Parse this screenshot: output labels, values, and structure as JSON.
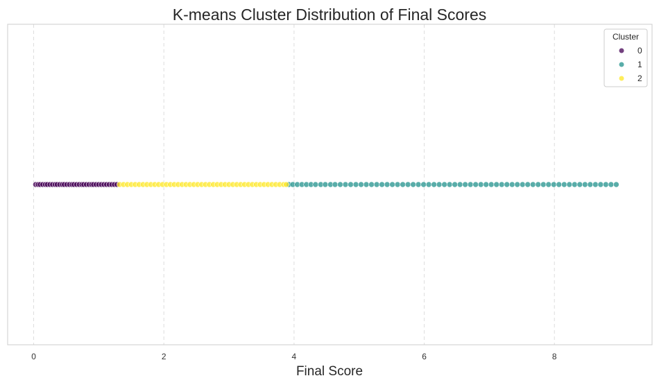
{
  "chart_data": {
    "type": "scatter",
    "title": "K-means Cluster Distribution of Final Scores",
    "xlabel": "Final Score",
    "ylabel": "",
    "xlim": [
      -0.4,
      9.5
    ],
    "xticks": [
      0,
      2,
      4,
      6,
      8
    ],
    "xtick_labels": [
      "0",
      "2",
      "4",
      "6",
      "8"
    ],
    "grid": "x-only, dashed",
    "legend": {
      "title": "Cluster",
      "placement": "top-right",
      "entries": [
        "0",
        "1",
        "2"
      ]
    },
    "y_value": 0,
    "series": [
      {
        "name": "0",
        "color": "#440154",
        "x": [
          0.03,
          0.07,
          0.1,
          0.14,
          0.18,
          0.21,
          0.25,
          0.29,
          0.33,
          0.36,
          0.4,
          0.44,
          0.47,
          0.51,
          0.55,
          0.59,
          0.62,
          0.66,
          0.7,
          0.74,
          0.77,
          0.81,
          0.85,
          0.89,
          0.92,
          0.96,
          1.0,
          1.04,
          1.08,
          1.12,
          1.16,
          1.2,
          1.24,
          1.28
        ]
      },
      {
        "name": "1",
        "color": "#21918c",
        "x": [
          3.92,
          3.98,
          4.05,
          4.12,
          4.19,
          4.26,
          4.33,
          4.41,
          4.48,
          4.56,
          4.63,
          4.71,
          4.79,
          4.87,
          4.95,
          5.03,
          5.11,
          5.19,
          5.27,
          5.35,
          5.43,
          5.51,
          5.59,
          5.67,
          5.75,
          5.83,
          5.91,
          5.99,
          6.07,
          6.15,
          6.23,
          6.31,
          6.39,
          6.47,
          6.55,
          6.63,
          6.71,
          6.79,
          6.87,
          6.95,
          7.03,
          7.11,
          7.19,
          7.27,
          7.35,
          7.43,
          7.51,
          7.59,
          7.67,
          7.75,
          7.83,
          7.91,
          7.99,
          8.07,
          8.15,
          8.23,
          8.31,
          8.39,
          8.47,
          8.55,
          8.63,
          8.71,
          8.79,
          8.87,
          8.95
        ]
      },
      {
        "name": "2",
        "color": "#fde725",
        "x": [
          1.32,
          1.38,
          1.44,
          1.5,
          1.56,
          1.62,
          1.68,
          1.74,
          1.8,
          1.86,
          1.92,
          1.98,
          2.04,
          2.1,
          2.16,
          2.22,
          2.28,
          2.34,
          2.4,
          2.46,
          2.52,
          2.58,
          2.64,
          2.7,
          2.76,
          2.82,
          2.88,
          2.94,
          3.0,
          3.06,
          3.12,
          3.18,
          3.24,
          3.3,
          3.36,
          3.42,
          3.48,
          3.54,
          3.6,
          3.66,
          3.72,
          3.78,
          3.84,
          3.88
        ]
      }
    ]
  }
}
